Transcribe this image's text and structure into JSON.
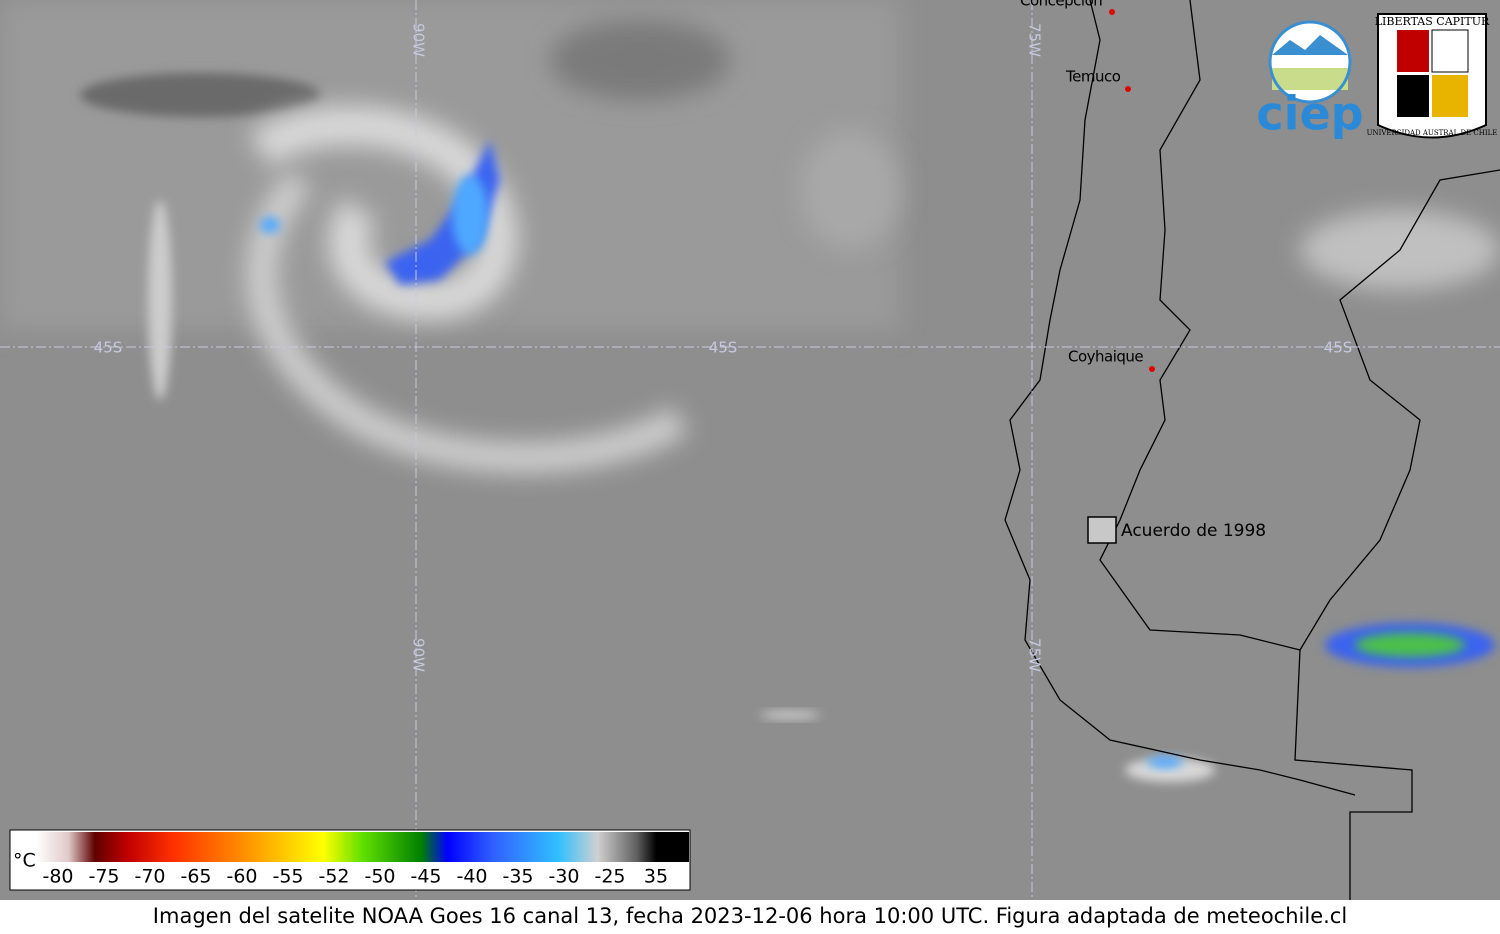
{
  "map": {
    "meridians": [
      "90W",
      "75W"
    ],
    "parallel": "45S",
    "places": [
      "Concepción",
      "Temuco",
      "Coyhaique"
    ],
    "region_label": "Acuerdo de 1998"
  },
  "logos": {
    "ciep": "ciep",
    "uach_motto": "LIBERTAS CAPITUR",
    "uach_name": "UNIVERSIDAD AUSTRAL DE CHILE"
  },
  "colorbar": {
    "unit": "°C",
    "ticks": [
      -80,
      -75,
      -70,
      -65,
      -60,
      -55,
      -52,
      -50,
      -45,
      -40,
      -35,
      -30,
      -25,
      35
    ]
  },
  "caption": "Imagen del satelite NOAA Goes 16 canal 13, fecha 2023-12-06 hora 10:00 UTC. Figura adaptada de meteochile.cl"
}
